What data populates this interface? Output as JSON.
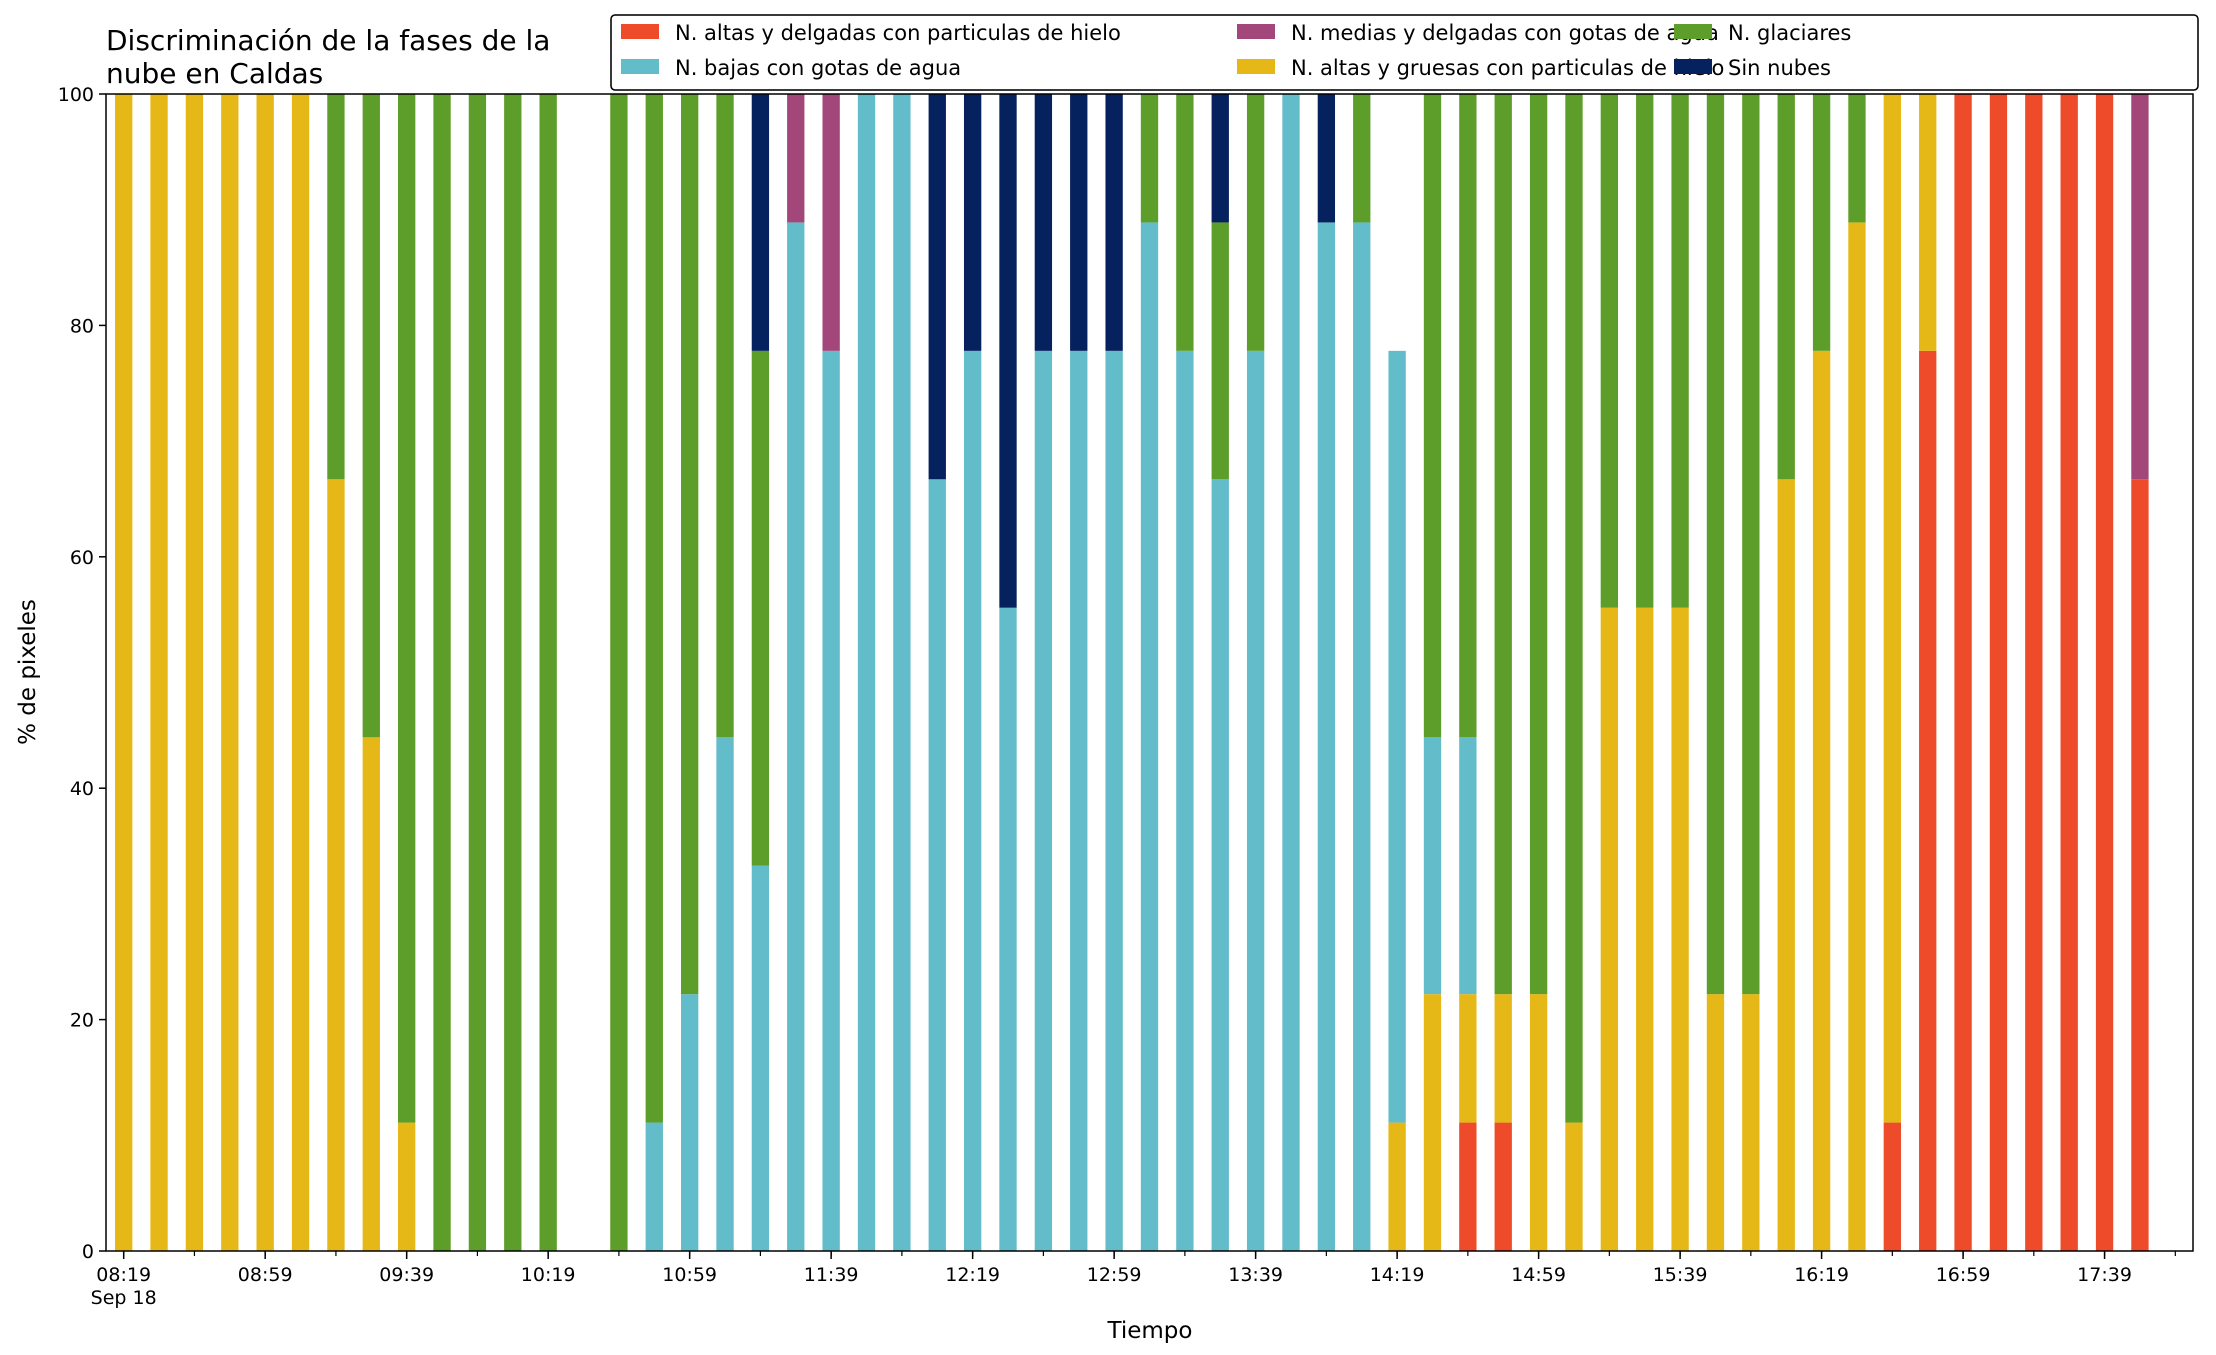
{
  "chart_data": {
    "type": "bar",
    "stacked": true,
    "title_lines": [
      "Discriminación de la fases de la",
      "nube en Caldas"
    ],
    "xlabel": "Tiempo",
    "ylabel": "% de pixeles",
    "ylim": [
      0,
      100
    ],
    "yticks": [
      0,
      20,
      40,
      60,
      80,
      100
    ],
    "x_range": [
      "08:14",
      "18:04"
    ],
    "x": [
      "08:19",
      "08:29",
      "08:39",
      "08:49",
      "08:59",
      "09:09",
      "09:19",
      "09:29",
      "09:39",
      "09:49",
      "09:59",
      "10:09",
      "10:19",
      "10:29",
      "10:39",
      "10:49",
      "10:59",
      "11:09",
      "11:19",
      "11:29",
      "11:39",
      "11:49",
      "11:59",
      "12:09",
      "12:19",
      "12:29",
      "12:39",
      "12:49",
      "12:59",
      "13:09",
      "13:19",
      "13:29",
      "13:39",
      "13:49",
      "13:59",
      "14:09",
      "14:19",
      "14:29",
      "14:39",
      "14:49",
      "14:59",
      "15:09",
      "15:19",
      "15:29",
      "15:39",
      "15:49",
      "15:59",
      "16:09",
      "16:19",
      "16:29",
      "16:39",
      "16:49",
      "16:59",
      "17:09",
      "17:19",
      "17:29",
      "17:39",
      "17:49"
    ],
    "xtick_labels": [
      {
        "x": "08:19",
        "label": "08:19",
        "sublabel": "Sep 18"
      },
      {
        "x": "08:59",
        "label": "08:59"
      },
      {
        "x": "09:39",
        "label": "09:39"
      },
      {
        "x": "10:19",
        "label": "10:19"
      },
      {
        "x": "10:59",
        "label": "10:59"
      },
      {
        "x": "11:39",
        "label": "11:39"
      },
      {
        "x": "12:19",
        "label": "12:19"
      },
      {
        "x": "12:59",
        "label": "12:59"
      },
      {
        "x": "13:39",
        "label": "13:39"
      },
      {
        "x": "14:19",
        "label": "14:19"
      },
      {
        "x": "14:59",
        "label": "14:59"
      },
      {
        "x": "15:39",
        "label": "15:39"
      },
      {
        "x": "16:19",
        "label": "16:19"
      },
      {
        "x": "16:59",
        "label": "16:59"
      },
      {
        "x": "17:39",
        "label": "17:39"
      }
    ],
    "legend_position": "top-right",
    "series": [
      {
        "name": "N. altas y delgadas con particulas de hielo",
        "color": "#ee4b2b",
        "values": [
          0,
          0,
          0,
          0,
          0,
          0,
          0,
          0,
          0,
          0,
          0,
          0,
          0,
          0,
          0,
          0,
          0,
          0,
          0,
          0,
          0,
          0,
          0,
          0,
          0,
          0,
          0,
          0,
          0,
          0,
          0,
          0,
          0,
          0,
          0,
          0,
          0,
          0,
          11.1,
          11.1,
          0,
          0,
          0,
          0,
          0,
          0,
          0,
          0,
          0,
          0,
          11.1,
          77.8,
          100,
          100,
          100,
          100,
          100,
          66.7
        ]
      },
      {
        "name": "N. altas y gruesas con particulas de hielo",
        "color": "#e6b817",
        "values": [
          100,
          100,
          100,
          100,
          100,
          100,
          66.7,
          44.4,
          11.1,
          0,
          0,
          0,
          0,
          0,
          0,
          0,
          0,
          0,
          0,
          0,
          0,
          0,
          0,
          0,
          0,
          0,
          0,
          0,
          0,
          0,
          0,
          0,
          0,
          0,
          0,
          0,
          11.1,
          22.2,
          11.1,
          11.1,
          22.2,
          11.1,
          55.6,
          55.6,
          55.6,
          22.2,
          22.2,
          66.7,
          77.8,
          88.9,
          88.9,
          22.2,
          0,
          0,
          0,
          0,
          0,
          0
        ]
      },
      {
        "name": "N. bajas con gotas de agua",
        "color": "#63bcc9",
        "values": [
          0,
          0,
          0,
          0,
          0,
          0,
          0,
          0,
          0,
          0,
          0,
          0,
          0,
          0,
          0,
          11.1,
          22.2,
          44.4,
          33.3,
          88.9,
          77.8,
          100,
          100,
          66.7,
          77.8,
          55.6,
          77.8,
          77.8,
          77.8,
          88.9,
          77.8,
          66.7,
          77.8,
          100,
          88.9,
          88.9,
          66.7,
          22.2,
          22.2,
          0,
          0,
          0,
          0,
          0,
          0,
          0,
          0,
          0,
          0,
          0,
          0,
          0,
          0,
          0,
          0,
          0,
          0,
          0
        ]
      },
      {
        "name": "N. glaciares",
        "color": "#5d9e2a",
        "values": [
          0,
          0,
          0,
          0,
          0,
          0,
          33.3,
          55.6,
          88.9,
          100,
          100,
          100,
          100,
          0,
          100,
          88.9,
          77.8,
          55.6,
          44.5,
          0,
          0,
          0,
          0,
          0,
          0,
          0,
          0,
          0,
          0,
          11.1,
          22.2,
          22.2,
          22.2,
          0,
          0,
          11.1,
          0,
          55.6,
          55.6,
          77.8,
          77.8,
          88.9,
          44.4,
          44.4,
          44.4,
          77.8,
          77.8,
          33.3,
          22.2,
          11.1,
          0,
          0,
          0,
          0,
          0,
          0,
          0,
          0
        ]
      },
      {
        "name": "N. medias y delgadas con gotas de agua",
        "color": "#a3467a",
        "values": [
          0,
          0,
          0,
          0,
          0,
          0,
          0,
          0,
          0,
          0,
          0,
          0,
          0,
          0,
          0,
          0,
          0,
          0,
          0,
          11.1,
          22.2,
          0,
          0,
          0,
          0,
          0,
          0,
          0,
          0,
          0,
          0,
          0,
          0,
          0,
          0,
          0,
          0,
          0,
          0,
          0,
          0,
          0,
          0,
          0,
          0,
          0,
          0,
          0,
          0,
          0,
          0,
          0,
          0,
          0,
          0,
          0,
          0,
          33.3
        ]
      },
      {
        "name": "Sin nubes",
        "color": "#05215e",
        "values": [
          0,
          0,
          0,
          0,
          0,
          0,
          0,
          0,
          0,
          0,
          0,
          0,
          0,
          0,
          0,
          0,
          0,
          0,
          22.2,
          0,
          0,
          0,
          0,
          33.3,
          22.2,
          44.4,
          22.2,
          22.2,
          22.2,
          0,
          0,
          11.1,
          0,
          0,
          11.1,
          0,
          0,
          0,
          0,
          0,
          0,
          0,
          0,
          0,
          0,
          0,
          0,
          0,
          0,
          0,
          0,
          0,
          0,
          0,
          0,
          0,
          0,
          0
        ]
      }
    ],
    "legend_order": [
      0,
      2,
      4,
      1,
      3,
      5
    ]
  }
}
